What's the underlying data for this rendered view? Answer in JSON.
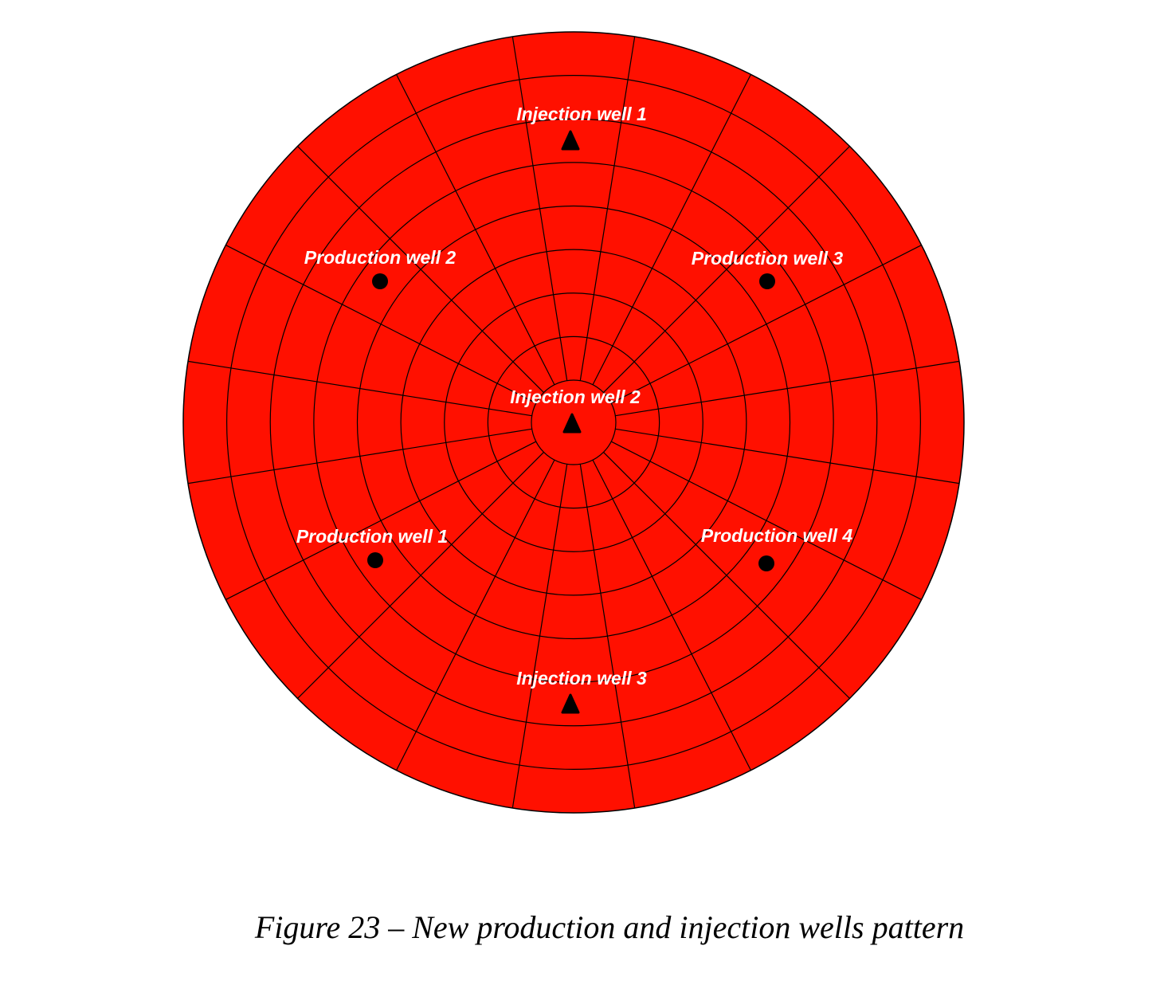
{
  "wells": [
    {
      "label": "Injection well 1"
    },
    {
      "label": "Production well 2"
    },
    {
      "label": "Production well 3"
    },
    {
      "label": "Injection well 2"
    },
    {
      "label": "Production well 1"
    },
    {
      "label": "Production well 4"
    },
    {
      "label": "Injection well 3"
    }
  ],
  "caption": "Figure 23 – New production and injection wells pattern"
}
